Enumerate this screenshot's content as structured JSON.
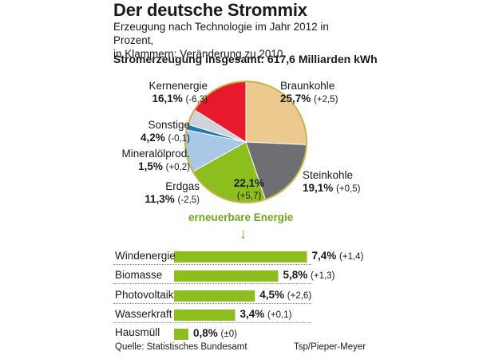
{
  "title": "Der deutsche Strommix",
  "subtitle_line1": "Erzeugung nach Technologie im Jahr 2012 in Prozent,",
  "subtitle_line2": "in Klammern: Veränderung zu 2010",
  "total": "Stromerzeugung insgesamt:  617,6 Milliarden kWh",
  "chart_data": [
    {
      "type": "pie",
      "slices": [
        {
          "label": "Braunkohle",
          "value": 25.7,
          "value_text": "25,7%",
          "change": "(+2,5)",
          "color": "#ecc98e"
        },
        {
          "label": "Steinkohle",
          "value": 19.1,
          "value_text": "19,1%",
          "change": "(+0,5)",
          "color": "#6e6f73"
        },
        {
          "label": "erneuerbare Energie",
          "value": 22.1,
          "value_text": "22,1%",
          "change": "(+5,7)",
          "color": "#8cbf1e"
        },
        {
          "label": "Erdgas",
          "value": 11.3,
          "value_text": "11,3%",
          "change": "(-2,5)",
          "color": "#a9c8e6"
        },
        {
          "label": "Mineralölprod.",
          "value": 1.5,
          "value_text": "1,5%",
          "change": "(+0,2)",
          "color": "#1f7ab8"
        },
        {
          "label": "Sonstige",
          "value": 4.2,
          "value_text": "4,2%",
          "change": "(-0,1)",
          "color": "#cfd3d9"
        },
        {
          "label": "Kernenergie",
          "value": 16.1,
          "value_text": "16,1%",
          "change": "(-6,3)",
          "color": "#e8192c"
        }
      ]
    },
    {
      "type": "bar",
      "title": "erneuerbare Energie",
      "categories": [
        "Windenergie",
        "Biomasse",
        "Photovoltaik",
        "Wasserkraft",
        "Hausmüll"
      ],
      "values": [
        7.4,
        5.8,
        4.5,
        3.4,
        0.8
      ],
      "value_texts": [
        "7,4%",
        "5,8%",
        "4,5%",
        "3,4%",
        "0,8%"
      ],
      "changes": [
        "(+1,4)",
        "(+1,3)",
        "(+2,6)",
        "(+0,1)",
        "(±0)"
      ],
      "color": "#8cbf1e"
    }
  ],
  "arrow_glyph": "↓",
  "source": "Quelle: Statistisches Bundesamt",
  "credit": "Tsp/Pieper-Meyer"
}
